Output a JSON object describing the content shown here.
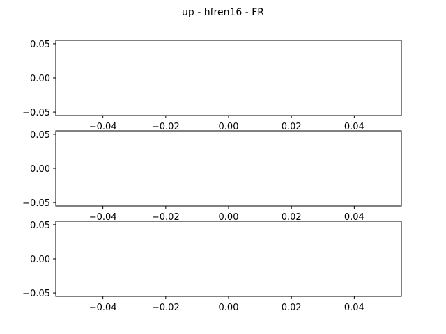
{
  "figure": {
    "title": "up - hfren16 - FR",
    "background": "#ffffff"
  },
  "chart_data": [
    {
      "type": "line",
      "title": "",
      "xlabel": "",
      "ylabel": "",
      "xlim": [
        -0.055,
        0.055
      ],
      "ylim": [
        -0.055,
        0.055
      ],
      "xticks": [
        -0.04,
        -0.02,
        0.0,
        0.02,
        0.04
      ],
      "xtick_labels": [
        "−0.04",
        "−0.02",
        "0.00",
        "0.02",
        "0.04"
      ],
      "yticks": [
        -0.05,
        0.0,
        0.05
      ],
      "ytick_labels": [
        "−0.05",
        "0.00",
        "0.05"
      ],
      "grid": false,
      "series": []
    },
    {
      "type": "line",
      "title": "",
      "xlabel": "",
      "ylabel": "",
      "xlim": [
        -0.055,
        0.055
      ],
      "ylim": [
        -0.055,
        0.055
      ],
      "xticks": [
        -0.04,
        -0.02,
        0.0,
        0.02,
        0.04
      ],
      "xtick_labels": [
        "−0.04",
        "−0.02",
        "0.00",
        "0.02",
        "0.04"
      ],
      "yticks": [
        -0.05,
        0.0,
        0.05
      ],
      "ytick_labels": [
        "−0.05",
        "0.00",
        "0.05"
      ],
      "grid": false,
      "series": []
    },
    {
      "type": "line",
      "title": "",
      "xlabel": "",
      "ylabel": "",
      "xlim": [
        -0.055,
        0.055
      ],
      "ylim": [
        -0.055,
        0.055
      ],
      "xticks": [
        -0.04,
        -0.02,
        0.0,
        0.02,
        0.04
      ],
      "xtick_labels": [
        "−0.04",
        "−0.02",
        "0.00",
        "0.02",
        "0.04"
      ],
      "yticks": [
        -0.05,
        0.0,
        0.05
      ],
      "ytick_labels": [
        "−0.05",
        "0.00",
        "0.05"
      ],
      "grid": false,
      "series": []
    }
  ]
}
